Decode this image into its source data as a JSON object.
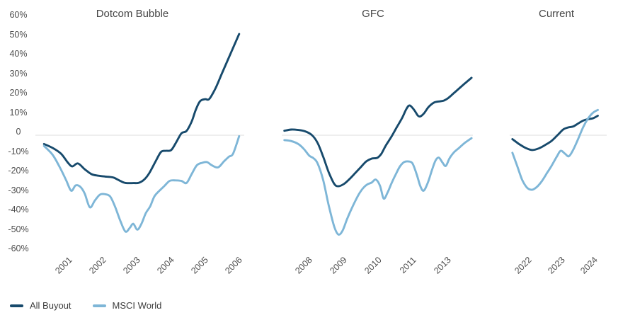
{
  "page": {
    "background": "#ffffff"
  },
  "colors": {
    "all_buyout": "#174A6C",
    "msci_world": "#7EB6D7",
    "gridline": "#DDDDDD",
    "title_text": "#454545",
    "axis_text": "#4D4D4D",
    "legend_text": "#3D3D3D"
  },
  "y_axis": {
    "tick_labels": [
      "60%",
      "50%",
      "40%",
      "30%",
      "20%",
      "10%",
      "0",
      "-10%",
      "-20%",
      "-30%",
      "-40%",
      "-50%",
      "-60%"
    ],
    "tick_values": [
      60,
      50,
      40,
      30,
      20,
      10,
      0,
      -10,
      -20,
      -30,
      -40,
      -50,
      -60
    ],
    "ylim": [
      -60,
      60
    ]
  },
  "legend": {
    "position": "bottom-left",
    "items": [
      {
        "label": "All Buyout",
        "color_key": "all_buyout"
      },
      {
        "label": "MSCI World",
        "color_key": "msci_world"
      }
    ]
  },
  "chart_data": [
    {
      "type": "line",
      "title": "Dotcom Bubble",
      "xlim": [
        2000.1,
        2006.15
      ],
      "ylim": [
        -60,
        60
      ],
      "grid": "zero-line-only",
      "x_ticks": [
        {
          "pos": 2001,
          "label": "2001"
        },
        {
          "pos": 2002,
          "label": "2002"
        },
        {
          "pos": 2003,
          "label": "2003"
        },
        {
          "pos": 2004,
          "label": "2004"
        },
        {
          "pos": 2005,
          "label": "2005"
        },
        {
          "pos": 2006,
          "label": "2006"
        }
      ],
      "series": [
        {
          "name": "All Buyout",
          "color_key": "all_buyout",
          "points": [
            [
              2000.25,
              -4.5
            ],
            [
              2000.5,
              -6.5
            ],
            [
              2000.75,
              -9.5
            ],
            [
              2000.95,
              -14
            ],
            [
              2001.08,
              -16
            ],
            [
              2001.25,
              -14.5
            ],
            [
              2001.45,
              -17.5
            ],
            [
              2001.65,
              -20
            ],
            [
              2001.85,
              -20.8
            ],
            [
              2002.1,
              -21.3
            ],
            [
              2002.3,
              -21.8
            ],
            [
              2002.5,
              -23.5
            ],
            [
              2002.65,
              -24.5
            ],
            [
              2002.9,
              -24.6
            ],
            [
              2003.05,
              -24.4
            ],
            [
              2003.2,
              -22.8
            ],
            [
              2003.35,
              -19.5
            ],
            [
              2003.55,
              -13
            ],
            [
              2003.7,
              -8.5
            ],
            [
              2003.85,
              -8
            ],
            [
              2004.0,
              -7.6
            ],
            [
              2004.15,
              -3.5
            ],
            [
              2004.3,
              1
            ],
            [
              2004.45,
              2.2
            ],
            [
              2004.6,
              7
            ],
            [
              2004.72,
              13
            ],
            [
              2004.85,
              17.5
            ],
            [
              2005.0,
              18.5
            ],
            [
              2005.12,
              18.6
            ],
            [
              2005.3,
              24
            ],
            [
              2005.5,
              32
            ],
            [
              2005.7,
              40
            ],
            [
              2005.85,
              46
            ],
            [
              2006.0,
              52
            ]
          ]
        },
        {
          "name": "MSCI World",
          "color_key": "msci_world",
          "points": [
            [
              2000.25,
              -5.5
            ],
            [
              2000.5,
              -10
            ],
            [
              2000.7,
              -16
            ],
            [
              2000.9,
              -23
            ],
            [
              2001.05,
              -28.5
            ],
            [
              2001.18,
              -25.8
            ],
            [
              2001.32,
              -26.5
            ],
            [
              2001.45,
              -30
            ],
            [
              2001.6,
              -37
            ],
            [
              2001.75,
              -33.5
            ],
            [
              2001.9,
              -30.5
            ],
            [
              2002.05,
              -30.3
            ],
            [
              2002.2,
              -31.5
            ],
            [
              2002.35,
              -37
            ],
            [
              2002.5,
              -44
            ],
            [
              2002.65,
              -49.5
            ],
            [
              2002.78,
              -47.5
            ],
            [
              2002.88,
              -45.5
            ],
            [
              2003.0,
              -48.5
            ],
            [
              2003.12,
              -45.5
            ],
            [
              2003.25,
              -40
            ],
            [
              2003.38,
              -36.5
            ],
            [
              2003.5,
              -31.5
            ],
            [
              2003.65,
              -28.5
            ],
            [
              2003.8,
              -26
            ],
            [
              2003.95,
              -23.5
            ],
            [
              2004.12,
              -23.2
            ],
            [
              2004.3,
              -23.5
            ],
            [
              2004.45,
              -24.5
            ],
            [
              2004.6,
              -20
            ],
            [
              2004.75,
              -15.5
            ],
            [
              2004.9,
              -14.2
            ],
            [
              2005.05,
              -13.8
            ],
            [
              2005.2,
              -15.5
            ],
            [
              2005.38,
              -16.5
            ],
            [
              2005.55,
              -13.5
            ],
            [
              2005.7,
              -11
            ],
            [
              2005.82,
              -9.5
            ],
            [
              2006.0,
              -0.5
            ]
          ]
        }
      ]
    },
    {
      "type": "line",
      "title": "GFC",
      "xlim": [
        2006.93,
        2014.0
      ],
      "ylim": [
        -60,
        60
      ],
      "grid": "zero-line-only",
      "x_ticks": [
        {
          "pos": 2008.0,
          "label": "2008"
        },
        {
          "pos": 2009.25,
          "label": "2009"
        },
        {
          "pos": 2010.5,
          "label": "2010"
        },
        {
          "pos": 2011.75,
          "label": "2011"
        },
        {
          "pos": 2013.0,
          "label": "2013"
        }
      ],
      "series": [
        {
          "name": "All Buyout",
          "color_key": "all_buyout",
          "points": [
            [
              2007.1,
              2.3
            ],
            [
              2007.35,
              2.9
            ],
            [
              2007.6,
              2.7
            ],
            [
              2007.85,
              2.0
            ],
            [
              2008.1,
              0
            ],
            [
              2008.3,
              -4
            ],
            [
              2008.5,
              -11
            ],
            [
              2008.7,
              -19
            ],
            [
              2008.9,
              -25
            ],
            [
              2009.05,
              -26.2
            ],
            [
              2009.25,
              -25
            ],
            [
              2009.45,
              -22.5
            ],
            [
              2009.65,
              -19.5
            ],
            [
              2009.85,
              -16.5
            ],
            [
              2010.05,
              -13.5
            ],
            [
              2010.25,
              -12
            ],
            [
              2010.45,
              -11.6
            ],
            [
              2010.6,
              -9.5
            ],
            [
              2010.75,
              -5.5
            ],
            [
              2010.95,
              -1
            ],
            [
              2011.15,
              4
            ],
            [
              2011.35,
              9
            ],
            [
              2011.5,
              13.5
            ],
            [
              2011.62,
              15.3
            ],
            [
              2011.78,
              13
            ],
            [
              2011.92,
              10
            ],
            [
              2012.02,
              9.8
            ],
            [
              2012.15,
              11.5
            ],
            [
              2012.3,
              14.5
            ],
            [
              2012.5,
              16.8
            ],
            [
              2012.7,
              17.4
            ],
            [
              2012.85,
              17.8
            ],
            [
              2013.0,
              19
            ],
            [
              2013.2,
              21.5
            ],
            [
              2013.4,
              24
            ],
            [
              2013.6,
              26.5
            ],
            [
              2013.85,
              29.5
            ]
          ]
        },
        {
          "name": "MSCI World",
          "color_key": "msci_world",
          "points": [
            [
              2007.1,
              -2.5
            ],
            [
              2007.35,
              -3
            ],
            [
              2007.6,
              -4.5
            ],
            [
              2007.8,
              -7
            ],
            [
              2008.0,
              -10.5
            ],
            [
              2008.15,
              -11.8
            ],
            [
              2008.3,
              -14.5
            ],
            [
              2008.5,
              -23
            ],
            [
              2008.7,
              -36
            ],
            [
              2008.9,
              -47
            ],
            [
              2009.05,
              -51
            ],
            [
              2009.2,
              -49
            ],
            [
              2009.35,
              -43.5
            ],
            [
              2009.5,
              -38.5
            ],
            [
              2009.65,
              -34
            ],
            [
              2009.8,
              -30
            ],
            [
              2009.95,
              -27
            ],
            [
              2010.1,
              -25.2
            ],
            [
              2010.25,
              -24.3
            ],
            [
              2010.4,
              -22.8
            ],
            [
              2010.55,
              -26
            ],
            [
              2010.68,
              -32.5
            ],
            [
              2010.82,
              -29.5
            ],
            [
              2010.97,
              -24.5
            ],
            [
              2011.12,
              -20
            ],
            [
              2011.27,
              -16
            ],
            [
              2011.42,
              -13.8
            ],
            [
              2011.58,
              -13.5
            ],
            [
              2011.72,
              -14.5
            ],
            [
              2011.87,
              -20
            ],
            [
              2012.0,
              -26
            ],
            [
              2012.12,
              -28.5
            ],
            [
              2012.27,
              -24.5
            ],
            [
              2012.42,
              -18
            ],
            [
              2012.55,
              -13
            ],
            [
              2012.67,
              -11.5
            ],
            [
              2012.8,
              -14
            ],
            [
              2012.92,
              -15.8
            ],
            [
              2013.05,
              -12
            ],
            [
              2013.2,
              -9
            ],
            [
              2013.4,
              -6.5
            ],
            [
              2013.6,
              -4
            ],
            [
              2013.85,
              -1.5
            ]
          ]
        }
      ]
    },
    {
      "type": "line",
      "title": "Current",
      "xlim": [
        2021.31,
        2024.37
      ],
      "ylim": [
        -60,
        60
      ],
      "grid": "zero-line-only",
      "x_ticks": [
        {
          "pos": 2022,
          "label": "2022"
        },
        {
          "pos": 2023,
          "label": "2023"
        },
        {
          "pos": 2024,
          "label": "2024"
        }
      ],
      "series": [
        {
          "name": "All Buyout",
          "color_key": "all_buyout",
          "points": [
            [
              2021.5,
              -2
            ],
            [
              2021.7,
              -4.5
            ],
            [
              2021.9,
              -6.5
            ],
            [
              2022.1,
              -7.6
            ],
            [
              2022.3,
              -6.8
            ],
            [
              2022.5,
              -5
            ],
            [
              2022.7,
              -2.8
            ],
            [
              2022.9,
              0.5
            ],
            [
              2023.05,
              3
            ],
            [
              2023.2,
              4
            ],
            [
              2023.35,
              4.5
            ],
            [
              2023.5,
              6
            ],
            [
              2023.65,
              7.5
            ],
            [
              2023.8,
              8.2
            ],
            [
              2023.95,
              8.7
            ],
            [
              2024.1,
              10
            ]
          ]
        },
        {
          "name": "MSCI World",
          "color_key": "msci_world",
          "points": [
            [
              2021.5,
              -9
            ],
            [
              2021.65,
              -16
            ],
            [
              2021.8,
              -23
            ],
            [
              2021.95,
              -27
            ],
            [
              2022.1,
              -28
            ],
            [
              2022.25,
              -26.5
            ],
            [
              2022.4,
              -23.5
            ],
            [
              2022.55,
              -19.5
            ],
            [
              2022.7,
              -15.5
            ],
            [
              2022.85,
              -11
            ],
            [
              2022.97,
              -8
            ],
            [
              2023.1,
              -9.5
            ],
            [
              2023.22,
              -10.8
            ],
            [
              2023.35,
              -7.5
            ],
            [
              2023.5,
              -2
            ],
            [
              2023.65,
              4
            ],
            [
              2023.8,
              8.5
            ],
            [
              2023.95,
              11.5
            ],
            [
              2024.1,
              13
            ]
          ]
        }
      ]
    }
  ]
}
